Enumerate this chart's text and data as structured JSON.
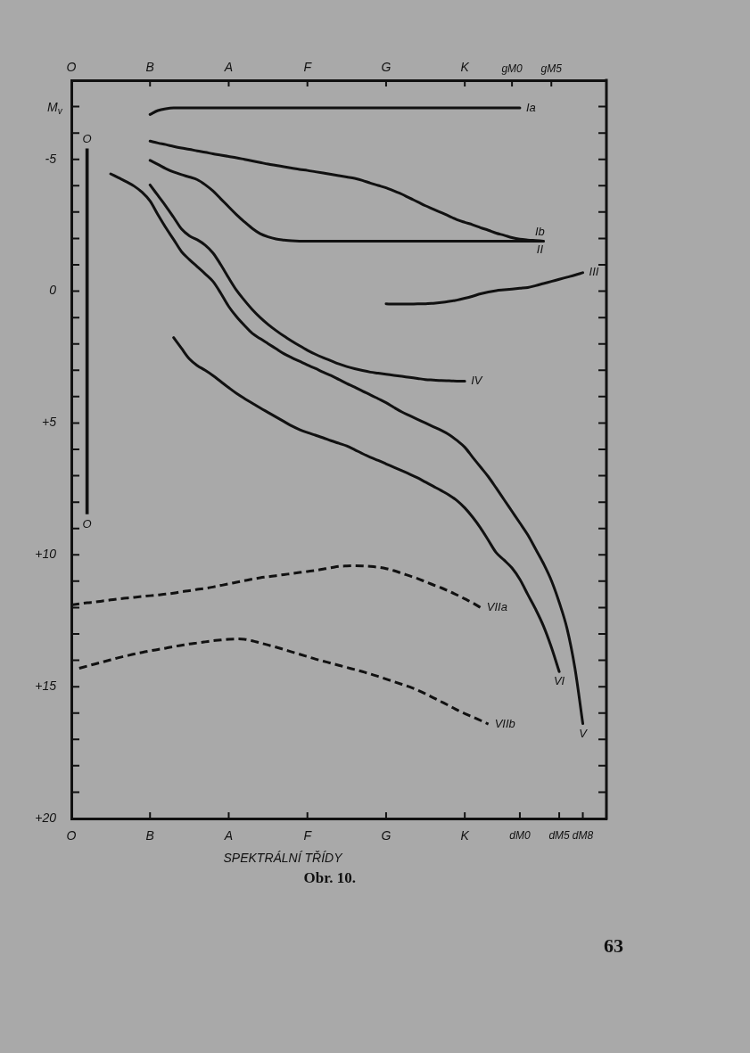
{
  "chart_data": [
    {
      "type": "line",
      "tick_labels": "x",
      "marker": "none",
      "line_style": "solid",
      "ylim": [
        20,
        -8
      ],
      "categories": [
        "O",
        null,
        null,
        null,
        null,
        null,
        null,
        null,
        null,
        null,
        "B",
        null,
        null,
        null,
        null,
        null,
        null,
        null,
        null,
        null,
        "A",
        null,
        null,
        null,
        null,
        null,
        null,
        null,
        null,
        null,
        "F",
        null,
        null,
        null,
        null,
        null,
        null,
        null,
        null,
        null,
        "G",
        null,
        null,
        null,
        null,
        null,
        null,
        null,
        null,
        null,
        "K",
        null,
        null,
        null,
        null,
        null,
        "gM0",
        null,
        null,
        null,
        null,
        "gM5",
        null,
        null,
        null,
        null,
        null,
        null,
        null
      ],
      "series": [
        {
          "name": "Ia",
          "color": "#111111",
          "values": [
            null,
            null,
            null,
            null,
            null,
            null,
            null,
            null,
            null,
            null,
            -6.7,
            -6.85,
            -6.92,
            -6.95,
            -6.95,
            -6.95,
            -6.95,
            -6.95,
            -6.95,
            -6.95,
            -6.95,
            -6.95,
            -6.95,
            -6.95,
            -6.95,
            -6.95,
            -6.95,
            -6.95,
            -6.95,
            -6.95,
            -6.95,
            -6.95,
            -6.95,
            -6.95,
            -6.95,
            -6.95,
            -6.95,
            -6.95,
            -6.95,
            -6.95,
            -6.95,
            -6.95,
            -6.95,
            -6.95,
            -6.95,
            -6.95,
            -6.95,
            -6.95,
            -6.95,
            -6.95,
            -6.95,
            -6.95,
            -6.95,
            -6.95,
            -6.95,
            -6.95,
            -6.95,
            -6.95,
            null,
            null,
            null,
            null,
            null,
            null,
            null,
            null,
            null,
            null,
            null
          ]
        },
        {
          "name": "Ib",
          "color": "#111111",
          "values": [
            null,
            null,
            null,
            null,
            null,
            null,
            null,
            null,
            null,
            null,
            -5.69,
            -5.62,
            -5.56,
            -5.49,
            -5.43,
            -5.38,
            -5.32,
            -5.27,
            -5.21,
            -5.16,
            -5.11,
            -5.06,
            -5.0,
            -4.94,
            -4.88,
            -4.82,
            -4.77,
            -4.72,
            -4.67,
            -4.62,
            -4.58,
            -4.53,
            -4.48,
            -4.43,
            -4.38,
            -4.33,
            -4.28,
            -4.2,
            -4.1,
            -4.01,
            -3.92,
            -3.8,
            -3.68,
            -3.53,
            -3.39,
            -3.24,
            -3.11,
            -2.98,
            -2.85,
            -2.71,
            -2.61,
            -2.52,
            -2.41,
            -2.31,
            -2.2,
            -2.12,
            -2.03,
            -1.97,
            -1.94,
            -1.92,
            -1.9,
            null,
            null,
            null,
            null,
            null,
            null,
            null,
            null
          ]
        },
        {
          "name": "II",
          "color": "#111111",
          "values": [
            null,
            null,
            null,
            null,
            null,
            null,
            null,
            null,
            null,
            null,
            -4.96,
            -4.81,
            -4.65,
            -4.52,
            -4.42,
            -4.33,
            -4.23,
            -4.04,
            -3.8,
            -3.5,
            -3.2,
            -2.9,
            -2.63,
            -2.38,
            -2.18,
            -2.06,
            -1.98,
            -1.94,
            -1.91,
            -1.9,
            -1.9,
            -1.9,
            -1.9,
            -1.9,
            -1.9,
            -1.9,
            -1.9,
            -1.9,
            -1.9,
            -1.9,
            -1.9,
            -1.9,
            -1.9,
            -1.9,
            -1.9,
            -1.9,
            -1.9,
            -1.9,
            -1.9,
            -1.9,
            -1.9,
            -1.9,
            -1.9,
            -1.9,
            -1.9,
            -1.9,
            -1.9,
            -1.9,
            -1.9,
            -1.9,
            -1.9,
            null,
            null,
            null,
            null,
            null,
            null,
            null,
            null
          ]
        },
        {
          "name": "III",
          "color": "#111111",
          "values": [
            null,
            null,
            null,
            null,
            null,
            null,
            null,
            null,
            null,
            null,
            null,
            null,
            null,
            null,
            null,
            null,
            null,
            null,
            null,
            null,
            null,
            null,
            null,
            null,
            null,
            null,
            null,
            null,
            null,
            null,
            null,
            null,
            null,
            null,
            null,
            null,
            null,
            null,
            null,
            null,
            0.48,
            0.49,
            0.49,
            0.49,
            0.48,
            0.48,
            0.46,
            0.43,
            0.39,
            0.34,
            0.27,
            0.19,
            0.1,
            0.03,
            -0.02,
            -0.05,
            -0.08,
            -0.11,
            -0.14,
            -0.21,
            -0.29,
            -0.37,
            -0.45,
            -0.53,
            -0.61,
            -0.7,
            null,
            null,
            null
          ]
        }
      ]
    },
    {
      "type": "line",
      "xlabel": "SPEKTRÁLNÍ TŘÍDY",
      "ylabel": "M$_{v}$",
      "marker": "none",
      "line_style": "solid",
      "ylim": [
        20,
        -8
      ],
      "categories": [
        "O",
        null,
        null,
        null,
        null,
        null,
        null,
        null,
        null,
        null,
        "B",
        null,
        null,
        null,
        null,
        null,
        null,
        null,
        null,
        null,
        "A",
        null,
        null,
        null,
        null,
        null,
        null,
        null,
        null,
        null,
        "F",
        null,
        null,
        null,
        null,
        null,
        null,
        null,
        null,
        null,
        "G",
        null,
        null,
        null,
        null,
        null,
        null,
        null,
        null,
        null,
        "K",
        null,
        null,
        null,
        null,
        null,
        null,
        "dM0",
        null,
        null,
        null,
        null,
        "dM5",
        null,
        null,
        "dM8",
        null,
        null,
        null
      ],
      "yticks": [
        {
          "value": -7,
          "label": null
        },
        {
          "value": -6,
          "label": null
        },
        -5,
        {
          "value": -4,
          "label": null
        },
        {
          "value": -3,
          "label": null
        },
        {
          "value": -2,
          "label": null
        },
        {
          "value": -1,
          "label": null
        },
        0,
        {
          "value": 1,
          "label": null
        },
        {
          "value": 2,
          "label": null
        },
        {
          "value": 3,
          "label": null
        },
        {
          "value": 4,
          "label": null
        },
        {
          "value": 5,
          "label": "+5"
        },
        {
          "value": 6,
          "label": null
        },
        {
          "value": 7,
          "label": null
        },
        {
          "value": 8,
          "label": null
        },
        {
          "value": 9,
          "label": null
        },
        {
          "value": 10,
          "label": "+10"
        },
        {
          "value": 11,
          "label": null
        },
        {
          "value": 12,
          "label": null
        },
        {
          "value": 13,
          "label": null
        },
        {
          "value": 14,
          "label": null
        },
        {
          "value": 15,
          "label": "+15"
        },
        {
          "value": 16,
          "label": null
        },
        {
          "value": 17,
          "label": null
        },
        {
          "value": 18,
          "label": null
        },
        {
          "value": 19,
          "label": null
        },
        {
          "value": 20,
          "label": "+20"
        }
      ],
      "series": [
        {
          "name": "IV",
          "color": "#111111",
          "values": [
            null,
            null,
            null,
            null,
            null,
            null,
            null,
            null,
            null,
            null,
            -4.03,
            -3.63,
            -3.23,
            -2.8,
            -2.36,
            -2.1,
            -1.95,
            -1.75,
            -1.45,
            -1.0,
            -0.5,
            -0.03,
            0.35,
            0.7,
            1.0,
            1.26,
            1.49,
            1.7,
            1.89,
            2.07,
            2.24,
            2.39,
            2.52,
            2.64,
            2.76,
            2.86,
            2.94,
            3.01,
            3.07,
            3.11,
            3.15,
            3.19,
            3.23,
            3.27,
            3.31,
            3.35,
            3.37,
            3.39,
            3.4,
            3.41,
            3.41,
            null,
            null,
            null,
            null,
            null,
            null,
            null,
            null,
            null,
            null,
            null,
            null,
            null,
            null,
            null,
            null,
            null,
            null
          ]
        },
        {
          "name": "V",
          "color": "#111111",
          "values": [
            null,
            null,
            null,
            null,
            null,
            -4.45,
            -4.3,
            -4.15,
            -3.98,
            -3.75,
            -3.42,
            -2.9,
            -2.41,
            -1.96,
            -1.5,
            -1.2,
            -0.93,
            -0.66,
            -0.37,
            0.08,
            0.58,
            0.97,
            1.3,
            1.6,
            1.8,
            1.99,
            2.18,
            2.37,
            2.52,
            2.66,
            2.8,
            2.93,
            3.07,
            3.2,
            3.35,
            3.5,
            3.64,
            3.79,
            3.93,
            4.08,
            4.23,
            4.41,
            4.58,
            4.72,
            4.86,
            5.0,
            5.14,
            5.28,
            5.44,
            5.66,
            5.92,
            6.3,
            6.67,
            7.04,
            7.47,
            7.91,
            8.35,
            8.79,
            9.24,
            9.78,
            10.33,
            10.97,
            11.8,
            12.8,
            14.3,
            16.4,
            null,
            null,
            null
          ]
        },
        {
          "name": "VI",
          "color": "#111111",
          "values": [
            null,
            null,
            null,
            null,
            null,
            null,
            null,
            null,
            null,
            null,
            null,
            null,
            null,
            1.76,
            2.17,
            2.57,
            2.82,
            3.0,
            3.2,
            3.43,
            3.66,
            3.88,
            4.07,
            4.25,
            4.43,
            4.6,
            4.77,
            4.94,
            5.11,
            5.25,
            5.36,
            5.46,
            5.56,
            5.67,
            5.77,
            5.87,
            6.01,
            6.16,
            6.3,
            6.42,
            6.55,
            6.68,
            6.81,
            6.94,
            7.08,
            7.24,
            7.4,
            7.56,
            7.73,
            7.94,
            8.22,
            8.57,
            8.98,
            9.45,
            9.92,
            10.2,
            10.5,
            10.93,
            11.5,
            12.06,
            12.7,
            13.5,
            14.43,
            null,
            null,
            null,
            null,
            null,
            null
          ]
        },
        {
          "name": "VIIa",
          "color": "#111111",
          "line_style": "dashed",
          "values": [
            11.9,
            11.86,
            11.82,
            11.79,
            11.75,
            11.71,
            11.67,
            11.64,
            11.61,
            11.58,
            11.55,
            11.52,
            11.49,
            11.45,
            11.4,
            11.36,
            11.31,
            11.27,
            11.22,
            11.16,
            11.1,
            11.04,
            10.98,
            10.92,
            10.87,
            10.83,
            10.79,
            10.75,
            10.71,
            10.67,
            10.63,
            10.59,
            10.54,
            10.49,
            10.44,
            10.42,
            10.41,
            10.42,
            10.44,
            10.47,
            10.52,
            10.6,
            10.7,
            10.8,
            10.9,
            11.02,
            11.14,
            11.25,
            11.38,
            11.52,
            11.67,
            11.82,
            12.0,
            null,
            null,
            null,
            null,
            null,
            null,
            null,
            null,
            null,
            null,
            null,
            null,
            null,
            null,
            null,
            null
          ]
        },
        {
          "name": "VIIb",
          "color": "#111111",
          "line_style": "dashed",
          "values": [
            null,
            14.3,
            14.22,
            14.14,
            14.06,
            13.98,
            13.9,
            13.83,
            13.76,
            13.7,
            13.64,
            13.59,
            13.54,
            13.48,
            13.43,
            13.38,
            13.34,
            13.3,
            13.26,
            13.23,
            13.2,
            13.19,
            13.2,
            13.26,
            13.34,
            13.42,
            13.5,
            13.59,
            13.68,
            13.77,
            13.86,
            13.95,
            14.03,
            14.11,
            14.19,
            14.27,
            14.35,
            14.43,
            14.52,
            14.61,
            14.71,
            14.81,
            14.91,
            15.01,
            15.13,
            15.27,
            15.42,
            15.57,
            15.72,
            15.88,
            16.02,
            16.15,
            16.28,
            16.42,
            null,
            null,
            null,
            null,
            null,
            null,
            null,
            null,
            null,
            null,
            null,
            null,
            null,
            null,
            null
          ]
        },
        {
          "name": "O",
          "type": "bar",
          "color": "#111111",
          "base": [
            null,
            null,
            -5.4,
            null,
            null,
            null,
            null,
            null,
            null,
            null,
            null,
            null,
            null,
            null,
            null,
            null,
            null,
            null,
            null,
            null,
            null,
            null,
            null,
            null,
            null,
            null,
            null,
            null,
            null,
            null,
            null,
            null,
            null,
            null,
            null,
            null,
            null,
            null,
            null,
            null,
            null,
            null,
            null,
            null,
            null,
            null,
            null,
            null,
            null,
            null,
            null,
            null,
            null,
            null,
            null,
            null,
            null,
            null,
            null,
            null,
            null,
            null,
            null,
            null,
            null,
            null,
            null,
            null,
            null
          ],
          "values": [
            null,
            null,
            13.85,
            null,
            null,
            null,
            null,
            null,
            null,
            null,
            null,
            null,
            null,
            null,
            null,
            null,
            null,
            null,
            null,
            null,
            null,
            null,
            null,
            null,
            null,
            null,
            null,
            null,
            null,
            null,
            null,
            null,
            null,
            null,
            null,
            null,
            null,
            null,
            null,
            null,
            null,
            null,
            null,
            null,
            null,
            null,
            null,
            null,
            null,
            null,
            null,
            null,
            null,
            null,
            null,
            null,
            null,
            null,
            null,
            null,
            null,
            null,
            null,
            null,
            null,
            null,
            null,
            null,
            null
          ]
        }
      ],
      "annotations": [
        "Obr. 10.",
        "63"
      ]
    }
  ]
}
